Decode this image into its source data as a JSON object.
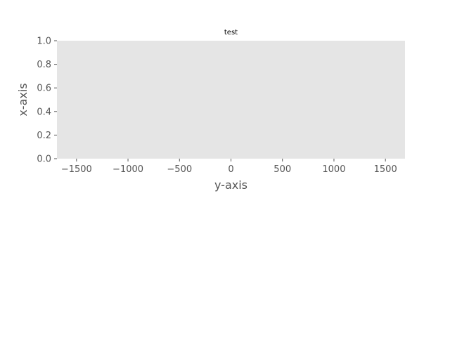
{
  "colors": {
    "plot_background": "#e5e5e5",
    "tick_color": "#555555",
    "text_color": "#555555",
    "title_color": "#000000"
  },
  "chart_data": {
    "type": "scatter",
    "title": "test",
    "xlabel": "y-axis",
    "ylabel": "x-axis",
    "xlim": [
      -1690,
      1690
    ],
    "ylim": [
      0,
      1
    ],
    "xticks": [
      -1500,
      -1000,
      -500,
      0,
      500,
      1000,
      1500
    ],
    "xtick_labels": [
      "−1500",
      "−1000",
      "−500",
      "0",
      "500",
      "1000",
      "1500"
    ],
    "yticks": [
      0,
      0.2,
      0.4,
      0.6,
      0.8,
      1.0
    ],
    "ytick_labels": [
      "0.0",
      "0.2",
      "0.4",
      "0.6",
      "0.8",
      "1.0"
    ],
    "grid": false,
    "series": [
      {
        "x": [],
        "y": []
      }
    ]
  }
}
